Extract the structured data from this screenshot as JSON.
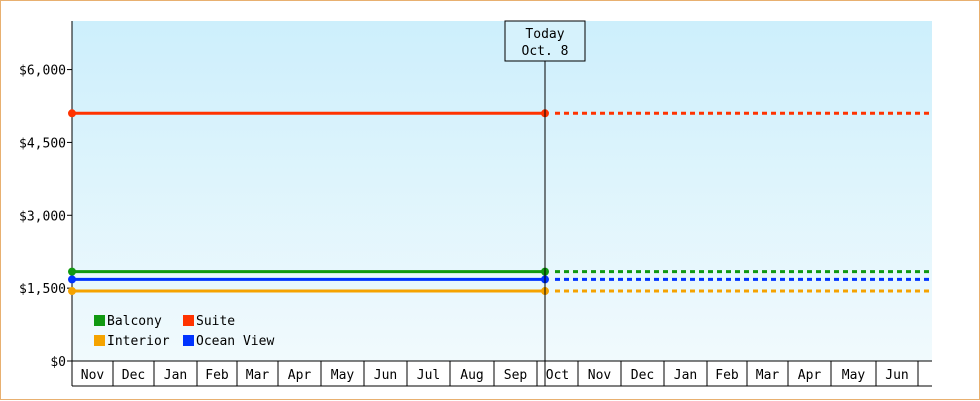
{
  "chart_data": {
    "type": "line",
    "title": "",
    "xlabel": "",
    "ylabel": "",
    "ylim": [
      0,
      7000
    ],
    "y_ticks": [
      "$0",
      "$1,500",
      "$3,000",
      "$4,500",
      "$6,000"
    ],
    "y_tick_values": [
      0,
      1500,
      3000,
      4500,
      6000
    ],
    "months": [
      "Nov",
      "Dec",
      "Jan",
      "Feb",
      "Mar",
      "Apr",
      "May",
      "Jun",
      "Jul",
      "Aug",
      "Sep",
      "Oct",
      "Nov",
      "Dec",
      "Jan",
      "Feb",
      "Mar",
      "Apr",
      "May",
      "Jun"
    ],
    "today": {
      "line1": "Today",
      "line2": "Oct. 8",
      "month_index": 11
    },
    "legend_position": "bottom-left",
    "series": [
      {
        "name": "Balcony",
        "color": "#119911",
        "value": 1840
      },
      {
        "name": "Suite",
        "color": "#ff3300",
        "value": 5100
      },
      {
        "name": "Interior",
        "color": "#f5a300",
        "value": 1440
      },
      {
        "name": "Ocean View",
        "color": "#0033ff",
        "value": 1680
      }
    ]
  }
}
